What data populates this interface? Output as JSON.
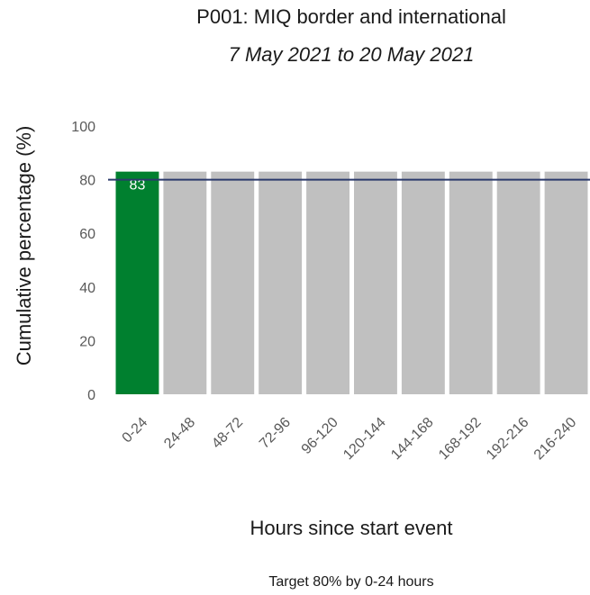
{
  "title": "P001: MIQ border and international",
  "subtitle": "7 May 2021 to 20 May 2021",
  "caption": "Target 80% by 0-24 hours",
  "chart_data": {
    "type": "bar",
    "categories": [
      "0-24",
      "24-48",
      "48-72",
      "72-96",
      "96-120",
      "120-144",
      "144-168",
      "168-192",
      "192-216",
      "216-240"
    ],
    "values": [
      83,
      83,
      83,
      83,
      83,
      83,
      83,
      83,
      83,
      83
    ],
    "data_labels": [
      "83",
      "",
      "",
      "",
      "",
      "",
      "",
      "",
      "",
      ""
    ],
    "highlight_index": 0,
    "xlabel": "Hours since start event",
    "ylabel": "Cumulative percentage (%)",
    "ylim": [
      0,
      100
    ],
    "yticks": [
      0,
      20,
      40,
      60,
      80,
      100
    ],
    "target_line": 80,
    "grid": false,
    "colors": {
      "highlight_bar": "#00802f",
      "other_bars": "#c0c0c0",
      "target_line": "#2b3a6b",
      "label_text": "#ffffff",
      "axis_text": "#595959"
    }
  }
}
